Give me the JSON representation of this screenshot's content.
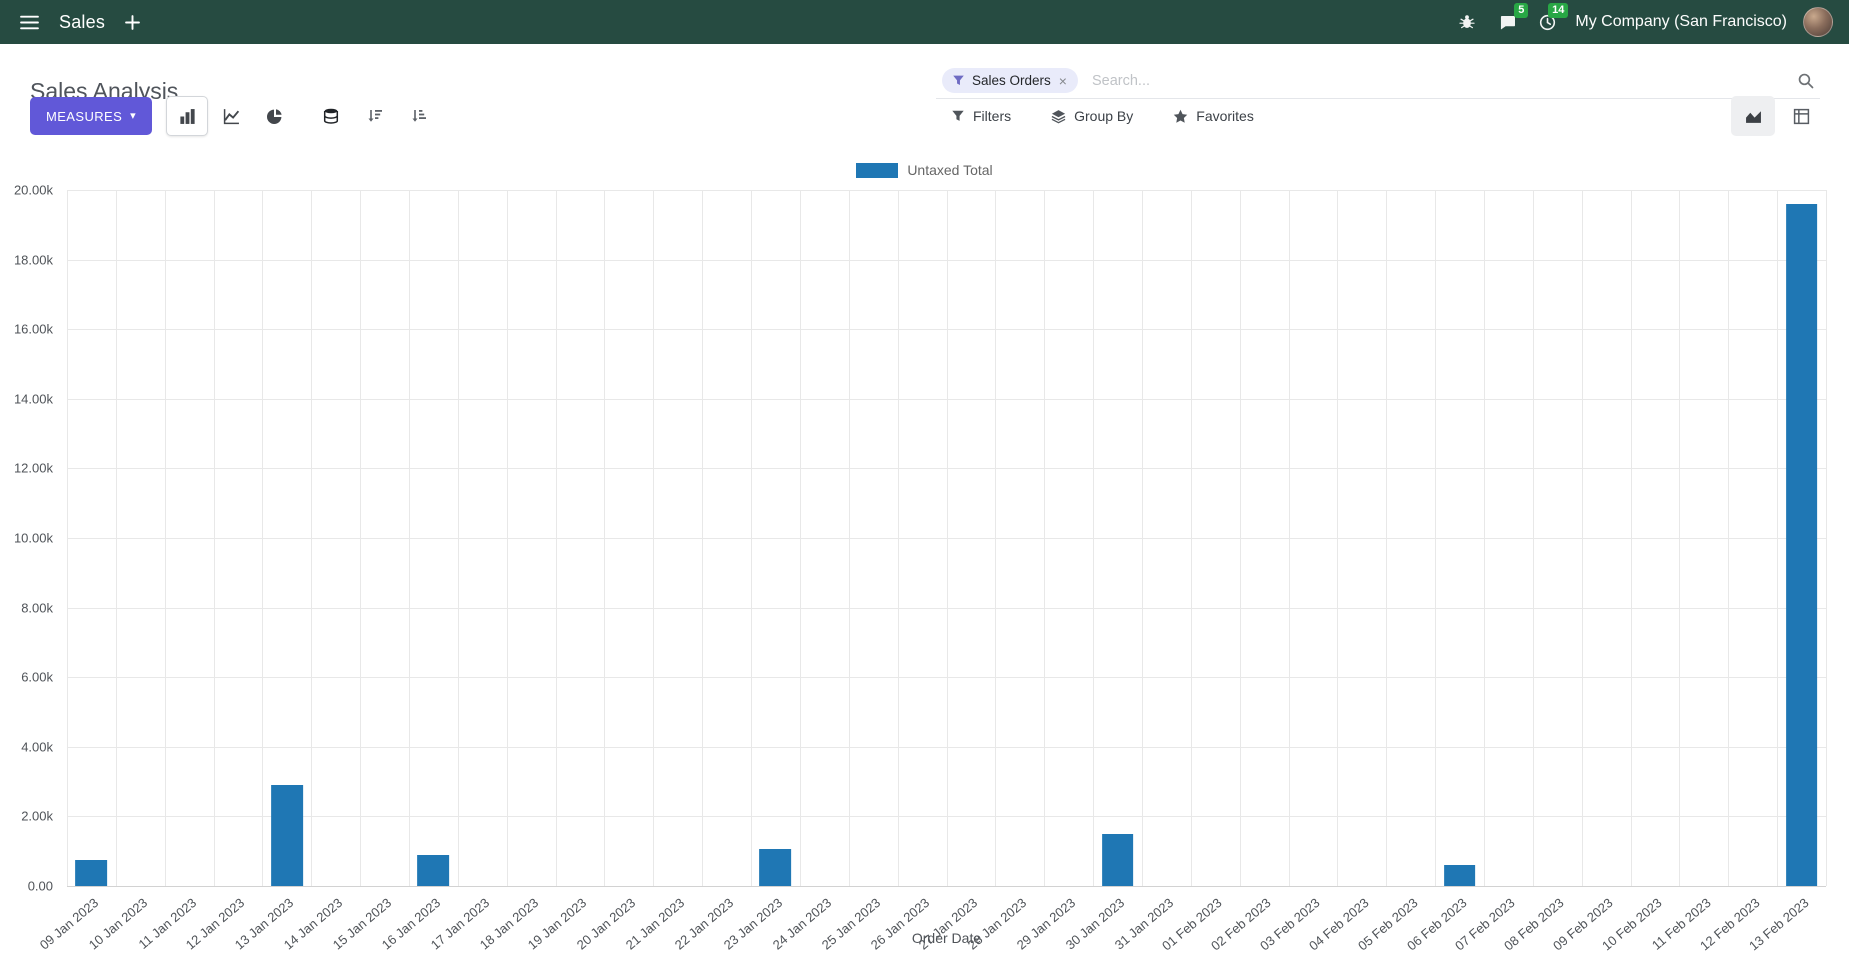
{
  "colors": {
    "navbar_bg": "#264b41",
    "primary": "#6158d8",
    "bar_series": "#1f77b4",
    "badge_green": "#28a745",
    "facet_bg": "#e9ebfa"
  },
  "navbar": {
    "app_name": "Sales",
    "messages_badge": "5",
    "activities_badge": "14",
    "company": "My Company (San Francisco)"
  },
  "control_panel": {
    "title": "Sales Analysis",
    "measures_label": "MEASURES",
    "search": {
      "facet_label": "Sales Orders",
      "placeholder": "Search..."
    },
    "filters_label": "Filters",
    "group_by_label": "Group By",
    "favorites_label": "Favorites"
  },
  "icons": {
    "caret_down": "▾",
    "facet_remove": "×"
  },
  "chart_data": {
    "type": "bar",
    "title": "",
    "legend_position": "top",
    "grid": true,
    "xlabel": "Order Date",
    "ylabel": "",
    "ylim": [
      0,
      20000
    ],
    "ytick_step": 2000,
    "ytick_labels": [
      "0.00",
      "2.00k",
      "4.00k",
      "6.00k",
      "8.00k",
      "10.00k",
      "12.00k",
      "14.00k",
      "16.00k",
      "18.00k",
      "20.00k"
    ],
    "categories": [
      "09 Jan 2023",
      "10 Jan 2023",
      "11 Jan 2023",
      "12 Jan 2023",
      "13 Jan 2023",
      "14 Jan 2023",
      "15 Jan 2023",
      "16 Jan 2023",
      "17 Jan 2023",
      "18 Jan 2023",
      "19 Jan 2023",
      "20 Jan 2023",
      "21 Jan 2023",
      "22 Jan 2023",
      "23 Jan 2023",
      "24 Jan 2023",
      "25 Jan 2023",
      "26 Jan 2023",
      "27 Jan 2023",
      "28 Jan 2023",
      "29 Jan 2023",
      "30 Jan 2023",
      "31 Jan 2023",
      "01 Feb 2023",
      "02 Feb 2023",
      "03 Feb 2023",
      "04 Feb 2023",
      "05 Feb 2023",
      "06 Feb 2023",
      "07 Feb 2023",
      "08 Feb 2023",
      "09 Feb 2023",
      "10 Feb 2023",
      "11 Feb 2023",
      "12 Feb 2023",
      "13 Feb 2023"
    ],
    "series": [
      {
        "name": "Untaxed Total",
        "color": "#1f77b4",
        "values": [
          750,
          0,
          0,
          0,
          2900,
          0,
          0,
          900,
          0,
          0,
          0,
          0,
          0,
          0,
          1050,
          0,
          0,
          0,
          0,
          0,
          0,
          1500,
          0,
          0,
          0,
          0,
          0,
          0,
          600,
          0,
          0,
          0,
          0,
          0,
          0,
          19600
        ]
      }
    ]
  }
}
